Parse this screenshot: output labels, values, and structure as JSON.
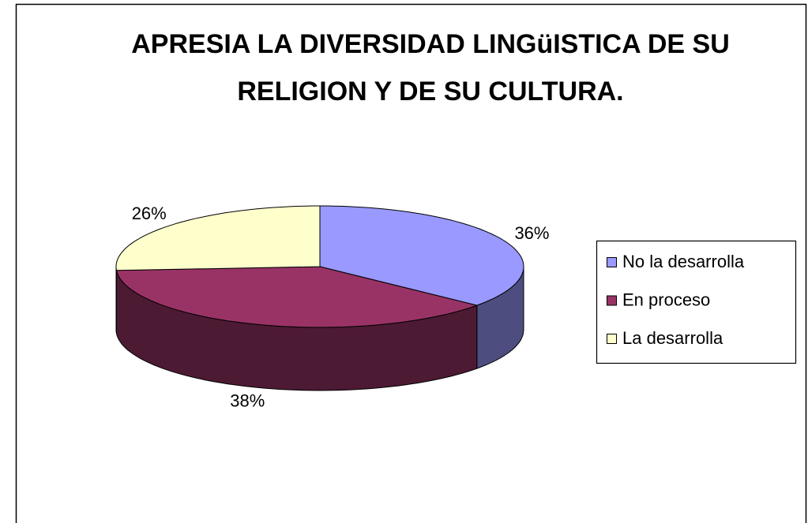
{
  "chart_data": {
    "type": "pie3d",
    "title": [
      "APRESIA LA DIVERSIDAD LINGüISTICA DE SU",
      "RELIGION Y DE SU CULTURA."
    ],
    "categories": [
      "No la desarrolla",
      "En proceso",
      "La desarrolla"
    ],
    "values": [
      36,
      38,
      26
    ],
    "value_labels": [
      "36%",
      "38%",
      "26%"
    ],
    "colors": [
      "#9999ff",
      "#993366",
      "#ffffcc"
    ],
    "legend": "right"
  }
}
